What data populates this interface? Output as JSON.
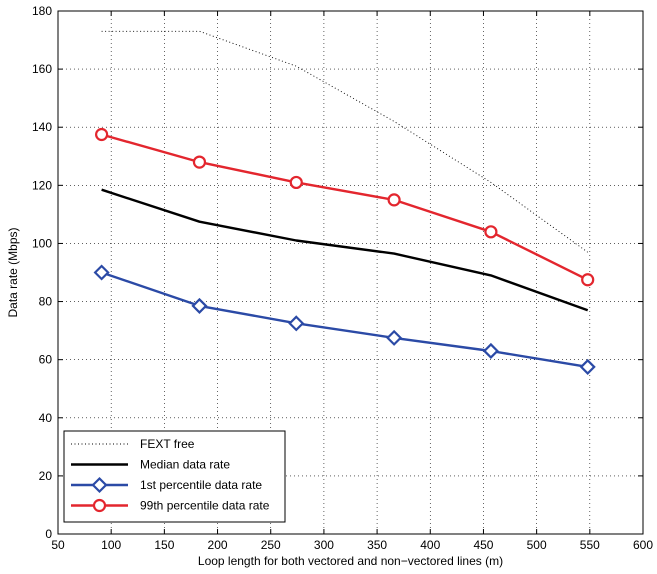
{
  "chart_data": {
    "type": "line",
    "title": "",
    "xlabel": "Loop length for both vectored and non−vectored lines (m)",
    "ylabel": "Data rate (Mbps)",
    "xlim": [
      50,
      600
    ],
    "ylim": [
      0,
      180
    ],
    "xticks": [
      50,
      100,
      150,
      200,
      250,
      300,
      350,
      400,
      450,
      500,
      550,
      600
    ],
    "yticks": [
      0,
      20,
      40,
      60,
      80,
      100,
      120,
      140,
      160,
      180
    ],
    "grid": true,
    "legend_position": "bottom-left",
    "series": [
      {
        "name": "FEXT free",
        "color": "#000000",
        "style": "dotted",
        "marker": "none",
        "x": [
          91,
          183,
          274,
          366,
          457,
          548
        ],
        "y": [
          173,
          173,
          161,
          142,
          121,
          97
        ]
      },
      {
        "name": "Median data rate",
        "color": "#000000",
        "style": "solid",
        "marker": "none",
        "x": [
          91,
          183,
          274,
          366,
          457,
          548
        ],
        "y": [
          118.5,
          107.5,
          101,
          96.5,
          89,
          77
        ]
      },
      {
        "name": "1st percentile data rate",
        "color": "#2b4aa6",
        "style": "solid",
        "marker": "diamond",
        "x": [
          91,
          183,
          274,
          366,
          457,
          548
        ],
        "y": [
          90,
          78.5,
          72.5,
          67.5,
          63,
          57.5
        ]
      },
      {
        "name": "99th percentile data rate",
        "color": "#e3262e",
        "style": "solid",
        "marker": "circle",
        "x": [
          91,
          183,
          274,
          366,
          457,
          548
        ],
        "y": [
          137.5,
          128,
          121,
          115,
          104,
          87.5
        ]
      }
    ]
  }
}
